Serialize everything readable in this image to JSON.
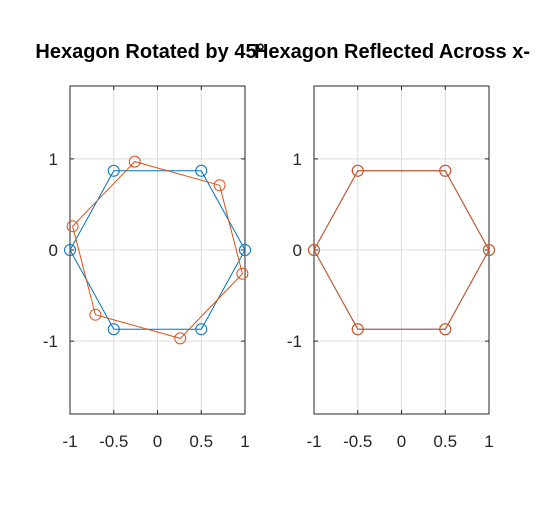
{
  "chart_data": [
    {
      "type": "line",
      "title": "Hexagon Rotated by 45°",
      "xlim": [
        -1,
        1
      ],
      "ylim": [
        -1.8,
        1.8
      ],
      "xticks": [
        -1,
        -0.5,
        0,
        0.5,
        1
      ],
      "yticks": [
        -1,
        0,
        1
      ],
      "xtick_labels": [
        "-1",
        "-0.5",
        "0",
        "0.5",
        "1"
      ],
      "ytick_labels": [
        "-1",
        "0",
        "1"
      ],
      "grid": true,
      "series": [
        {
          "color": "#0072bd",
          "marker": "circle",
          "x": [
            1,
            0.5,
            -0.5,
            -1,
            -0.5,
            0.5,
            1
          ],
          "y": [
            0,
            0.87,
            0.87,
            0,
            -0.87,
            -0.87,
            0
          ]
        },
        {
          "color": "#d95319",
          "marker": "circle",
          "x": [
            0.71,
            -0.26,
            -0.97,
            -0.71,
            0.26,
            0.97,
            0.71
          ],
          "y": [
            0.71,
            0.97,
            0.26,
            -0.71,
            -0.97,
            -0.26,
            0.71
          ]
        }
      ]
    },
    {
      "type": "line",
      "title": "Hexagon Reflected Across x-",
      "xlim": [
        -1,
        1
      ],
      "ylim": [
        -1.8,
        1.8
      ],
      "xticks": [
        -1,
        -0.5,
        0,
        0.5,
        1
      ],
      "yticks": [
        -1,
        0,
        1
      ],
      "xtick_labels": [
        "-1",
        "-0.5",
        "0",
        "0.5",
        "1"
      ],
      "ytick_labels": [
        "-1",
        "0",
        "1"
      ],
      "grid": true,
      "series": [
        {
          "color": "#0072bd",
          "marker": "circle",
          "x": [
            1,
            0.5,
            -0.5,
            -1,
            -0.5,
            0.5,
            1
          ],
          "y": [
            0,
            -0.87,
            -0.87,
            0,
            0.87,
            0.87,
            0
          ]
        },
        {
          "color": "#d95319",
          "marker": "circle",
          "x": [
            1,
            0.5,
            -0.5,
            -1,
            -0.5,
            0.5,
            1
          ],
          "y": [
            0,
            0.87,
            0.87,
            0,
            -0.87,
            -0.87,
            0
          ]
        }
      ]
    }
  ]
}
